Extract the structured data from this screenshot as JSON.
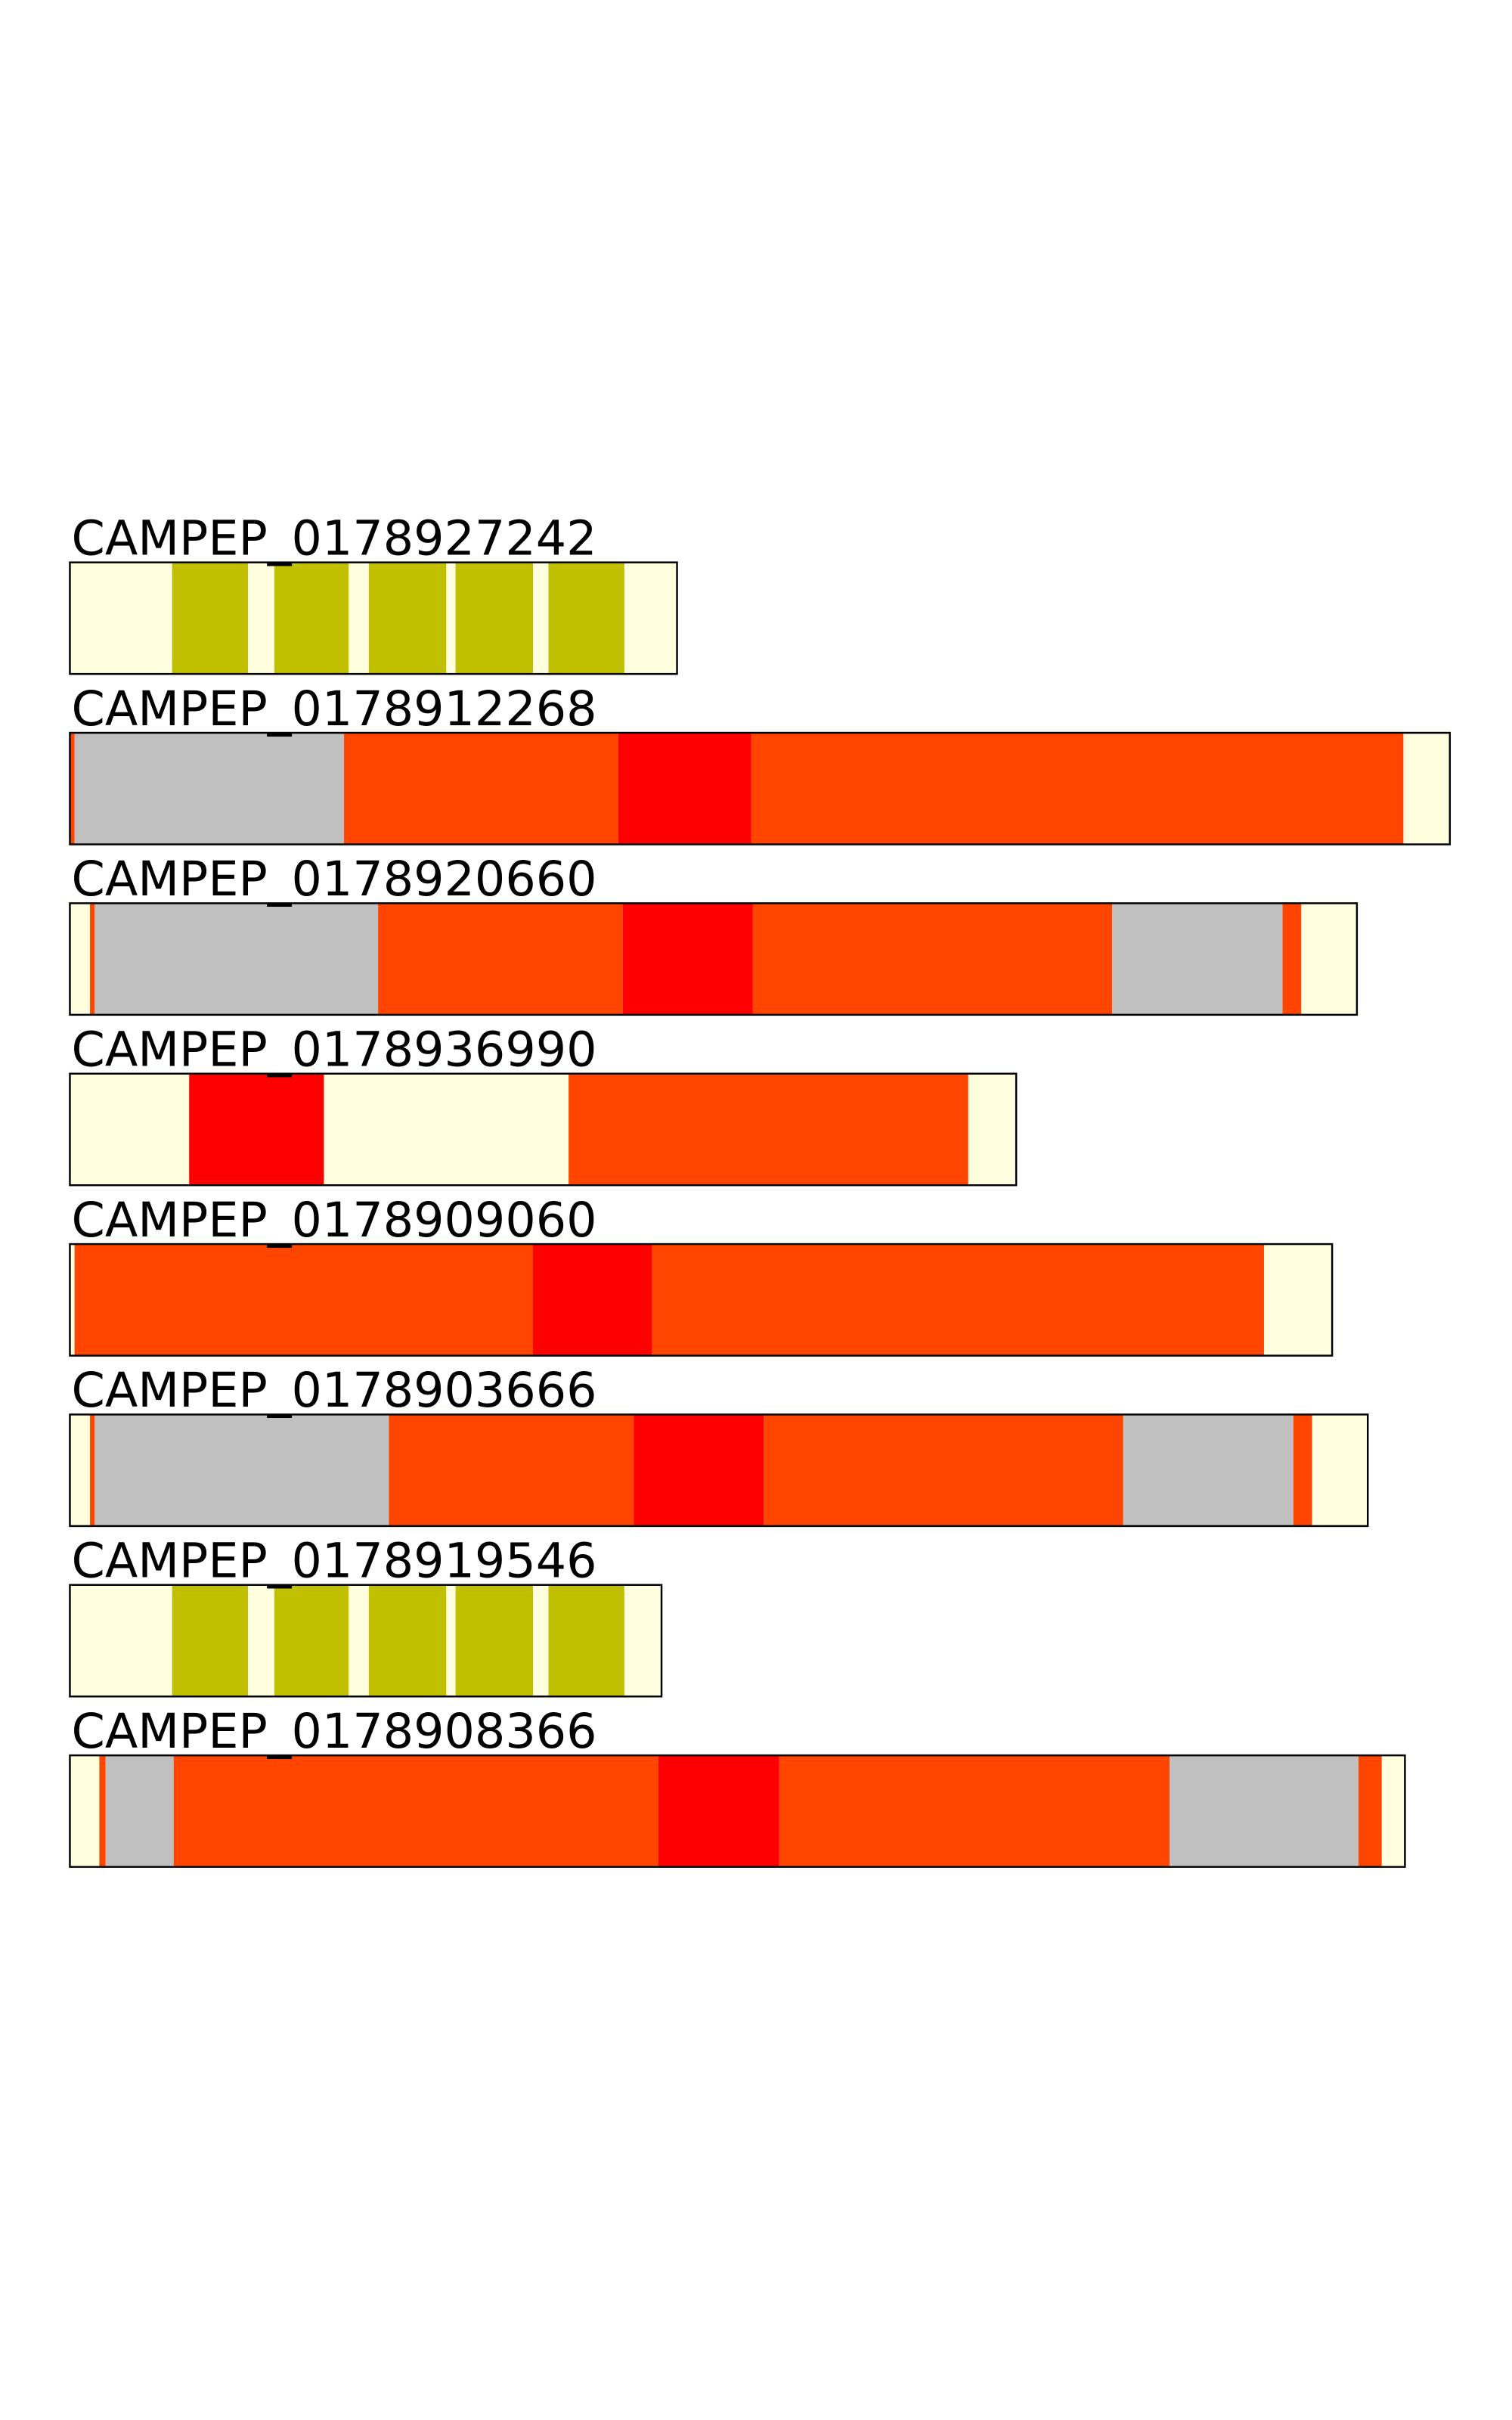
{
  "tracks": [
    {
      "label": "CAMPEP_0178927242"
    },
    {
      "label": "CAMPEP_0178912268"
    },
    {
      "label": "CAMPEP_0178920660"
    },
    {
      "label": "CAMPEP_0178936990"
    },
    {
      "label": "CAMPEP_0178909060"
    },
    {
      "label": "CAMPEP_0178903666"
    },
    {
      "label": "CAMPEP_0178919546"
    },
    {
      "label": "CAMPEP_0178908366"
    }
  ]
}
